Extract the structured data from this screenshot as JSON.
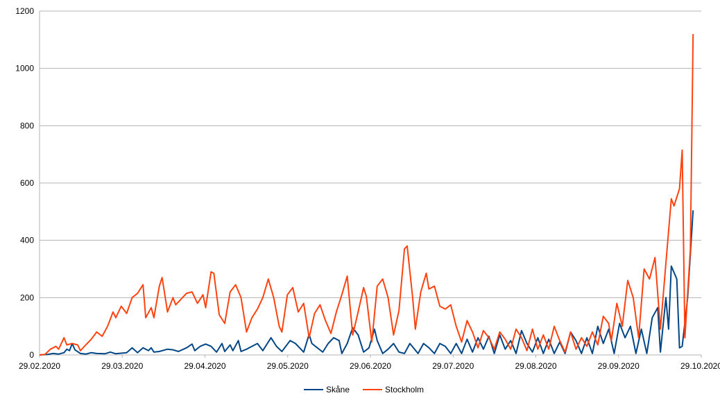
{
  "chart_data": {
    "type": "line",
    "title": "",
    "xlabel": "",
    "ylabel": "",
    "ylim": [
      0,
      1200
    ],
    "yticks": [
      0,
      200,
      400,
      600,
      800,
      1000,
      1200
    ],
    "yticks_labels": [
      "0",
      "200",
      "400",
      "600",
      "800",
      "1000",
      "1200"
    ],
    "x_tick_labels": [
      "29.02.2020",
      "29.03.2020",
      "29.04.2020",
      "29.05.2020",
      "29.06.2020",
      "29.07.2020",
      "29.08.2020",
      "29.09.2020",
      "29.10.2020"
    ],
    "x_start": "2020-02-29",
    "x_end": "2020-10-29",
    "grid": "horizontal",
    "legend_position": "bottom",
    "series": [
      {
        "name": "Skåne",
        "color": "#004586",
        "points": [
          [
            "2020-02-29",
            0
          ],
          [
            "2020-03-03",
            2
          ],
          [
            "2020-03-05",
            5
          ],
          [
            "2020-03-07",
            3
          ],
          [
            "2020-03-09",
            8
          ],
          [
            "2020-03-10",
            20
          ],
          [
            "2020-03-11",
            15
          ],
          [
            "2020-03-12",
            40
          ],
          [
            "2020-03-13",
            18
          ],
          [
            "2020-03-15",
            5
          ],
          [
            "2020-03-17",
            3
          ],
          [
            "2020-03-19",
            8
          ],
          [
            "2020-03-21",
            5
          ],
          [
            "2020-03-24",
            4
          ],
          [
            "2020-03-26",
            10
          ],
          [
            "2020-03-28",
            4
          ],
          [
            "2020-04-01",
            8
          ],
          [
            "2020-04-03",
            25
          ],
          [
            "2020-04-05",
            8
          ],
          [
            "2020-04-07",
            25
          ],
          [
            "2020-04-09",
            15
          ],
          [
            "2020-04-10",
            25
          ],
          [
            "2020-04-11",
            10
          ],
          [
            "2020-04-13",
            12
          ],
          [
            "2020-04-16",
            20
          ],
          [
            "2020-04-18",
            18
          ],
          [
            "2020-04-20",
            12
          ],
          [
            "2020-04-23",
            25
          ],
          [
            "2020-04-25",
            38
          ],
          [
            "2020-04-26",
            15
          ],
          [
            "2020-04-28",
            30
          ],
          [
            "2020-04-30",
            38
          ],
          [
            "2020-05-02",
            30
          ],
          [
            "2020-05-04",
            10
          ],
          [
            "2020-05-06",
            40
          ],
          [
            "2020-05-07",
            12
          ],
          [
            "2020-05-09",
            35
          ],
          [
            "2020-05-10",
            15
          ],
          [
            "2020-05-12",
            50
          ],
          [
            "2020-05-13",
            12
          ],
          [
            "2020-05-15",
            20
          ],
          [
            "2020-05-17",
            30
          ],
          [
            "2020-05-19",
            40
          ],
          [
            "2020-05-21",
            15
          ],
          [
            "2020-05-24",
            60
          ],
          [
            "2020-05-26",
            30
          ],
          [
            "2020-05-28",
            12
          ],
          [
            "2020-05-31",
            50
          ],
          [
            "2020-06-02",
            40
          ],
          [
            "2020-06-05",
            10
          ],
          [
            "2020-06-07",
            72
          ],
          [
            "2020-06-08",
            40
          ],
          [
            "2020-06-10",
            25
          ],
          [
            "2020-06-12",
            10
          ],
          [
            "2020-06-14",
            40
          ],
          [
            "2020-06-16",
            60
          ],
          [
            "2020-06-18",
            50
          ],
          [
            "2020-06-19",
            5
          ],
          [
            "2020-06-21",
            40
          ],
          [
            "2020-06-23",
            95
          ],
          [
            "2020-06-25",
            70
          ],
          [
            "2020-06-27",
            10
          ],
          [
            "2020-06-29",
            25
          ],
          [
            "2020-07-01",
            90
          ],
          [
            "2020-07-02",
            50
          ],
          [
            "2020-07-04",
            5
          ],
          [
            "2020-07-06",
            20
          ],
          [
            "2020-07-08",
            40
          ],
          [
            "2020-07-10",
            10
          ],
          [
            "2020-07-12",
            5
          ],
          [
            "2020-07-14",
            40
          ],
          [
            "2020-07-17",
            5
          ],
          [
            "2020-07-19",
            40
          ],
          [
            "2020-07-21",
            25
          ],
          [
            "2020-07-23",
            5
          ],
          [
            "2020-07-25",
            40
          ],
          [
            "2020-07-27",
            30
          ],
          [
            "2020-07-29",
            5
          ],
          [
            "2020-07-31",
            40
          ],
          [
            "2020-08-02",
            5
          ],
          [
            "2020-08-04",
            55
          ],
          [
            "2020-08-06",
            10
          ],
          [
            "2020-08-08",
            60
          ],
          [
            "2020-08-10",
            20
          ],
          [
            "2020-08-12",
            65
          ],
          [
            "2020-08-14",
            5
          ],
          [
            "2020-08-16",
            70
          ],
          [
            "2020-08-18",
            20
          ],
          [
            "2020-08-20",
            50
          ],
          [
            "2020-08-22",
            5
          ],
          [
            "2020-08-24",
            85
          ],
          [
            "2020-08-26",
            40
          ],
          [
            "2020-08-28",
            10
          ],
          [
            "2020-08-30",
            60
          ],
          [
            "2020-09-01",
            5
          ],
          [
            "2020-09-03",
            55
          ],
          [
            "2020-09-05",
            5
          ],
          [
            "2020-09-07",
            45
          ],
          [
            "2020-09-09",
            5
          ],
          [
            "2020-09-11",
            80
          ],
          [
            "2020-09-13",
            50
          ],
          [
            "2020-09-15",
            5
          ],
          [
            "2020-09-17",
            60
          ],
          [
            "2020-09-19",
            5
          ],
          [
            "2020-09-21",
            100
          ],
          [
            "2020-09-23",
            40
          ],
          [
            "2020-09-25",
            90
          ],
          [
            "2020-09-27",
            5
          ],
          [
            "2020-09-29",
            110
          ],
          [
            "2020-10-01",
            60
          ],
          [
            "2020-10-03",
            100
          ],
          [
            "2020-10-05",
            5
          ],
          [
            "2020-10-07",
            90
          ],
          [
            "2020-10-09",
            5
          ],
          [
            "2020-10-11",
            130
          ],
          [
            "2020-10-13",
            165
          ],
          [
            "2020-10-14",
            10
          ],
          [
            "2020-10-16",
            200
          ],
          [
            "2020-10-17",
            90
          ],
          [
            "2020-10-18",
            310
          ],
          [
            "2020-10-20",
            265
          ],
          [
            "2020-10-21",
            25
          ],
          [
            "2020-10-22",
            30
          ],
          [
            "2020-10-24",
            200
          ],
          [
            "2020-10-26",
            505
          ]
        ]
      },
      {
        "name": "Stockholm",
        "color": "#ff420e",
        "points": [
          [
            "2020-02-29",
            0
          ],
          [
            "2020-03-02",
            2
          ],
          [
            "2020-03-04",
            20
          ],
          [
            "2020-03-06",
            30
          ],
          [
            "2020-03-07",
            20
          ],
          [
            "2020-03-09",
            60
          ],
          [
            "2020-03-10",
            35
          ],
          [
            "2020-03-12",
            40
          ],
          [
            "2020-03-14",
            35
          ],
          [
            "2020-03-15",
            15
          ],
          [
            "2020-03-17",
            35
          ],
          [
            "2020-03-19",
            55
          ],
          [
            "2020-03-21",
            80
          ],
          [
            "2020-03-23",
            65
          ],
          [
            "2020-03-25",
            100
          ],
          [
            "2020-03-27",
            150
          ],
          [
            "2020-03-28",
            130
          ],
          [
            "2020-03-30",
            170
          ],
          [
            "2020-04-01",
            145
          ],
          [
            "2020-04-03",
            200
          ],
          [
            "2020-04-05",
            215
          ],
          [
            "2020-04-07",
            245
          ],
          [
            "2020-04-08",
            130
          ],
          [
            "2020-04-10",
            165
          ],
          [
            "2020-04-11",
            130
          ],
          [
            "2020-04-13",
            240
          ],
          [
            "2020-04-14",
            270
          ],
          [
            "2020-04-16",
            150
          ],
          [
            "2020-04-18",
            200
          ],
          [
            "2020-04-19",
            175
          ],
          [
            "2020-04-21",
            195
          ],
          [
            "2020-04-23",
            215
          ],
          [
            "2020-04-25",
            220
          ],
          [
            "2020-04-27",
            180
          ],
          [
            "2020-04-29",
            210
          ],
          [
            "2020-04-30",
            165
          ],
          [
            "2020-05-02",
            290
          ],
          [
            "2020-05-03",
            285
          ],
          [
            "2020-05-05",
            140
          ],
          [
            "2020-05-07",
            110
          ],
          [
            "2020-05-09",
            220
          ],
          [
            "2020-05-11",
            245
          ],
          [
            "2020-05-13",
            200
          ],
          [
            "2020-05-15",
            80
          ],
          [
            "2020-05-17",
            130
          ],
          [
            "2020-05-19",
            160
          ],
          [
            "2020-05-21",
            200
          ],
          [
            "2020-05-23",
            265
          ],
          [
            "2020-05-25",
            200
          ],
          [
            "2020-05-27",
            100
          ],
          [
            "2020-05-28",
            80
          ],
          [
            "2020-05-30",
            210
          ],
          [
            "2020-06-01",
            235
          ],
          [
            "2020-06-03",
            150
          ],
          [
            "2020-06-05",
            180
          ],
          [
            "2020-06-07",
            60
          ],
          [
            "2020-06-09",
            145
          ],
          [
            "2020-06-11",
            175
          ],
          [
            "2020-06-13",
            120
          ],
          [
            "2020-06-15",
            75
          ],
          [
            "2020-06-17",
            150
          ],
          [
            "2020-06-19",
            210
          ],
          [
            "2020-06-21",
            275
          ],
          [
            "2020-06-23",
            70
          ],
          [
            "2020-06-25",
            150
          ],
          [
            "2020-06-27",
            235
          ],
          [
            "2020-06-28",
            205
          ],
          [
            "2020-06-30",
            45
          ],
          [
            "2020-07-02",
            240
          ],
          [
            "2020-07-04",
            265
          ],
          [
            "2020-07-06",
            200
          ],
          [
            "2020-07-08",
            70
          ],
          [
            "2020-07-10",
            155
          ],
          [
            "2020-07-12",
            370
          ],
          [
            "2020-07-13",
            380
          ],
          [
            "2020-07-15",
            200
          ],
          [
            "2020-07-16",
            90
          ],
          [
            "2020-07-18",
            220
          ],
          [
            "2020-07-20",
            285
          ],
          [
            "2020-07-21",
            230
          ],
          [
            "2020-07-23",
            240
          ],
          [
            "2020-07-25",
            170
          ],
          [
            "2020-07-27",
            160
          ],
          [
            "2020-07-29",
            175
          ],
          [
            "2020-07-31",
            100
          ],
          [
            "2020-08-02",
            45
          ],
          [
            "2020-08-04",
            120
          ],
          [
            "2020-08-06",
            80
          ],
          [
            "2020-08-08",
            25
          ],
          [
            "2020-08-10",
            85
          ],
          [
            "2020-08-12",
            60
          ],
          [
            "2020-08-14",
            20
          ],
          [
            "2020-08-16",
            80
          ],
          [
            "2020-08-18",
            55
          ],
          [
            "2020-08-20",
            20
          ],
          [
            "2020-08-22",
            90
          ],
          [
            "2020-08-24",
            60
          ],
          [
            "2020-08-26",
            15
          ],
          [
            "2020-08-28",
            90
          ],
          [
            "2020-08-30",
            20
          ],
          [
            "2020-09-01",
            70
          ],
          [
            "2020-09-03",
            20
          ],
          [
            "2020-09-05",
            100
          ],
          [
            "2020-09-07",
            50
          ],
          [
            "2020-09-09",
            10
          ],
          [
            "2020-09-11",
            80
          ],
          [
            "2020-09-13",
            20
          ],
          [
            "2020-09-15",
            60
          ],
          [
            "2020-09-17",
            30
          ],
          [
            "2020-09-19",
            80
          ],
          [
            "2020-09-21",
            35
          ],
          [
            "2020-09-23",
            135
          ],
          [
            "2020-09-25",
            110
          ],
          [
            "2020-09-26",
            50
          ],
          [
            "2020-09-28",
            180
          ],
          [
            "2020-09-30",
            100
          ],
          [
            "2020-10-02",
            260
          ],
          [
            "2020-10-04",
            200
          ],
          [
            "2020-10-06",
            60
          ],
          [
            "2020-10-08",
            300
          ],
          [
            "2020-10-10",
            265
          ],
          [
            "2020-10-12",
            340
          ],
          [
            "2020-10-14",
            90
          ],
          [
            "2020-10-16",
            320
          ],
          [
            "2020-10-18",
            545
          ],
          [
            "2020-10-19",
            520
          ],
          [
            "2020-10-21",
            580
          ],
          [
            "2020-10-22",
            715
          ],
          [
            "2020-10-23",
            60
          ],
          [
            "2020-10-25",
            370
          ],
          [
            "2020-10-26",
            1120
          ]
        ]
      }
    ]
  }
}
